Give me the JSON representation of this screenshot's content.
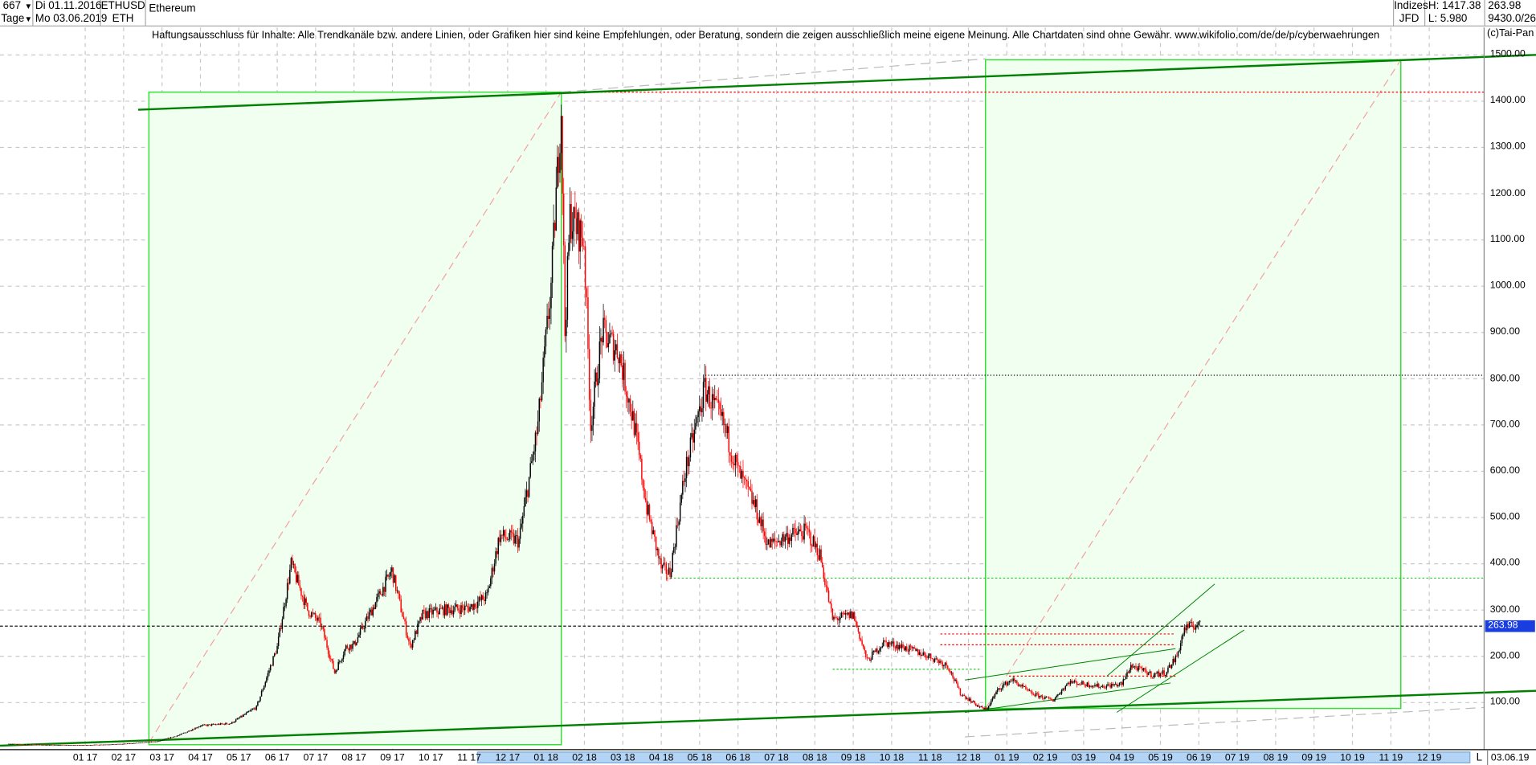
{
  "header": {
    "count": "667",
    "period": "Tage",
    "date_from": "Di 01.11.2016",
    "date_to": "Mo 03.06.2019",
    "symbol": "ETHUSD",
    "symbol_short": "ETH",
    "name": "Ethereum",
    "market": "Indizes",
    "source": "JFD",
    "high": "H: 1417.38",
    "low": "L: 5.980",
    "last": "263.98",
    "volume": "9430.0/26"
  },
  "disclaimer": "Haftungsausschluss für Inhalte: Alle Trendkanäle bzw. andere Linien, oder Grafiken hier sind keine Empfehlungen, oder Beratung, sondern die zeigen ausschließlich meine eigene Meinung. Alle Chartdaten sind ohne Gewähr.  www.wikifolio.com/de/de/p/cyberwaehrungen",
  "copyright": "(c)Tai-Pan",
  "footer": {
    "end_marker": "L",
    "end_date": "03.06.19"
  },
  "colors": {
    "up": "#000000",
    "down": "#ff0000",
    "channel": "#008000",
    "box": "#33dd33",
    "box_fill": "#f0fff0",
    "price_tag": "#1a3de0"
  },
  "chart_data": {
    "type": "candlestick",
    "ylim": [
      0,
      1500
    ],
    "y_ticks": [
      "100.00",
      "200.00",
      "300.00",
      "400.00",
      "500.00",
      "600.00",
      "700.00",
      "800.00",
      "900.00",
      "1000.00",
      "1100.00",
      "1200.00",
      "1300.00",
      "1400.00",
      "1500.00"
    ],
    "x_ticks": [
      "01 17",
      "02 17",
      "03 17",
      "04 17",
      "05 17",
      "06 17",
      "07 17",
      "08 17",
      "09 17",
      "10 17",
      "11 17",
      "12 17",
      "01 18",
      "02 18",
      "03 18",
      "04 18",
      "05 18",
      "06 18",
      "07 18",
      "08 18",
      "09 18",
      "10 18",
      "11 18",
      "12 18",
      "01 19",
      "02 19",
      "03 19",
      "04 19",
      "05 19",
      "06 19",
      "07 19",
      "08 19",
      "09 19",
      "10 19",
      "11 19",
      "12 19"
    ],
    "current_price": "263.98",
    "grid": true,
    "closes": [
      [
        "2016-11-01",
        10.9
      ],
      [
        "2016-12-01",
        8
      ],
      [
        "2017-01-01",
        8
      ],
      [
        "2017-02-01",
        10.5
      ],
      [
        "2017-02-28",
        16
      ],
      [
        "2017-03-15",
        30
      ],
      [
        "2017-04-01",
        50
      ],
      [
        "2017-04-25",
        55
      ],
      [
        "2017-05-15",
        90
      ],
      [
        "2017-05-25",
        170
      ],
      [
        "2017-06-01",
        220
      ],
      [
        "2017-06-12",
        400
      ],
      [
        "2017-06-25",
        300
      ],
      [
        "2017-07-05",
        270
      ],
      [
        "2017-07-16",
        165
      ],
      [
        "2017-07-25",
        220
      ],
      [
        "2017-08-01",
        225
      ],
      [
        "2017-08-15",
        300
      ],
      [
        "2017-08-31",
        385
      ],
      [
        "2017-09-15",
        220
      ],
      [
        "2017-09-25",
        290
      ],
      [
        "2017-10-10",
        300
      ],
      [
        "2017-10-31",
        305
      ],
      [
        "2017-11-15",
        330
      ],
      [
        "2017-11-25",
        460
      ],
      [
        "2017-12-10",
        450
      ],
      [
        "2017-12-25",
        700
      ],
      [
        "2018-01-05",
        1000
      ],
      [
        "2018-01-13",
        1390
      ],
      [
        "2018-01-16",
        900
      ],
      [
        "2018-01-20",
        1150
      ],
      [
        "2018-01-31",
        1100
      ],
      [
        "2018-02-06",
        700
      ],
      [
        "2018-02-15",
        900
      ],
      [
        "2018-02-28",
        860
      ],
      [
        "2018-03-10",
        700
      ],
      [
        "2018-03-20",
        520
      ],
      [
        "2018-04-01",
        390
      ],
      [
        "2018-04-08",
        380
      ],
      [
        "2018-04-20",
        600
      ],
      [
        "2018-05-05",
        780
      ],
      [
        "2018-05-20",
        700
      ],
      [
        "2018-06-01",
        600
      ],
      [
        "2018-06-15",
        520
      ],
      [
        "2018-06-25",
        440
      ],
      [
        "2018-07-10",
        460
      ],
      [
        "2018-07-25",
        470
      ],
      [
        "2018-08-05",
        420
      ],
      [
        "2018-08-15",
        280
      ],
      [
        "2018-09-01",
        290
      ],
      [
        "2018-09-12",
        190
      ],
      [
        "2018-09-25",
        230
      ],
      [
        "2018-10-10",
        220
      ],
      [
        "2018-10-31",
        200
      ],
      [
        "2018-11-15",
        180
      ],
      [
        "2018-11-25",
        120
      ],
      [
        "2018-12-10",
        90
      ],
      [
        "2018-12-15",
        85
      ],
      [
        "2018-12-25",
        130
      ],
      [
        "2019-01-05",
        150
      ],
      [
        "2019-01-20",
        120
      ],
      [
        "2019-02-07",
        105
      ],
      [
        "2019-02-20",
        145
      ],
      [
        "2019-03-15",
        135
      ],
      [
        "2019-04-01",
        140
      ],
      [
        "2019-04-08",
        180
      ],
      [
        "2019-04-25",
        160
      ],
      [
        "2019-05-05",
        165
      ],
      [
        "2019-05-14",
        200
      ],
      [
        "2019-05-20",
        260
      ],
      [
        "2019-05-31",
        270
      ],
      [
        "2019-06-03",
        263.98
      ]
    ]
  }
}
